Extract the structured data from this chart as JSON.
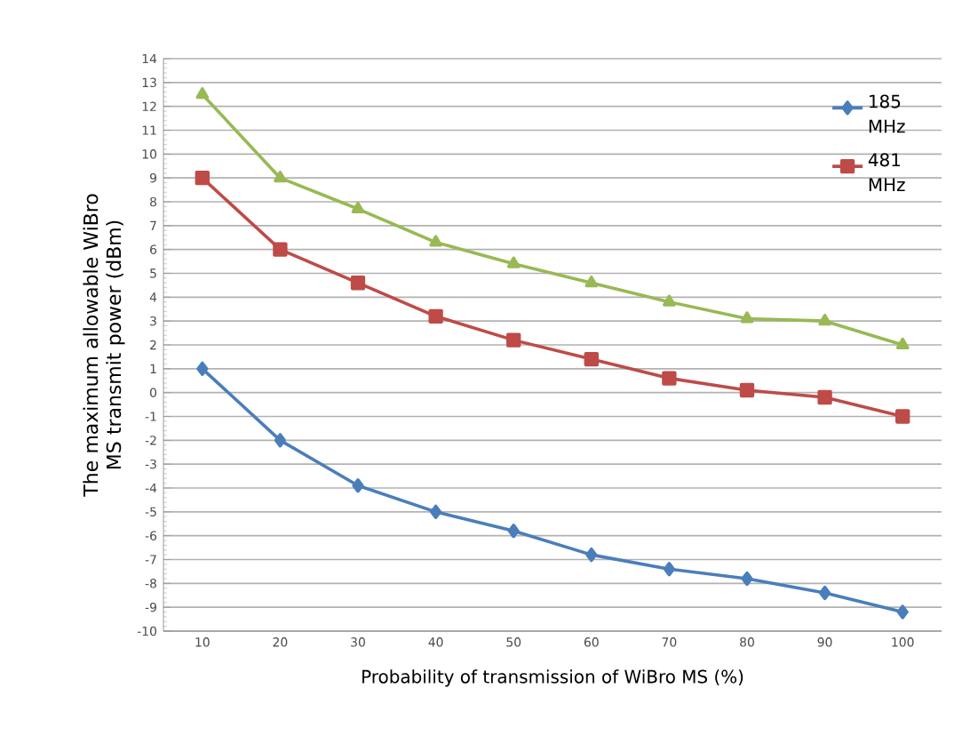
{
  "chart_data": {
    "type": "line",
    "xlabel": "Probability of transmission of WiBro MS (%)",
    "ylabel": "The maximum allowable WiBro MS transmit power (dBm)",
    "categories": [
      "10",
      "20",
      "30",
      "40",
      "50",
      "60",
      "70",
      "80",
      "90",
      "100"
    ],
    "series": [
      {
        "name": "185 MHz",
        "color": "#4a7ebb",
        "marker": "diamond",
        "values": [
          1,
          -2,
          -3.9,
          -5,
          -5.8,
          -6.8,
          -7.4,
          -7.8,
          -8.4,
          -9.2
        ]
      },
      {
        "name": "481 MHz",
        "color": "#be4b48",
        "marker": "square",
        "values": [
          9,
          6,
          4.6,
          3.2,
          2.2,
          1.4,
          0.6,
          0.1,
          -0.2,
          -1
        ]
      },
      {
        "color": "#98b954",
        "marker": "triangle",
        "values": [
          12.5,
          9,
          7.7,
          6.3,
          5.4,
          4.6,
          3.8,
          3.1,
          3.0,
          2.0
        ]
      }
    ],
    "ylim": [
      -10,
      14
    ],
    "yticks": [
      -10,
      -9,
      -8,
      -7,
      -6,
      -5,
      -4,
      -3,
      -2,
      -1,
      0,
      1,
      2,
      3,
      4,
      5,
      6,
      7,
      8,
      9,
      10,
      11,
      12,
      13,
      14
    ],
    "grid": "y",
    "legend": "top right"
  }
}
